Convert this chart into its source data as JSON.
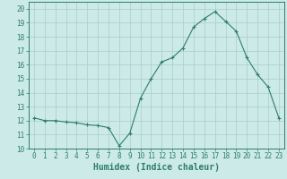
{
  "x": [
    0,
    1,
    2,
    3,
    4,
    5,
    6,
    7,
    8,
    9,
    10,
    11,
    12,
    13,
    14,
    15,
    16,
    17,
    18,
    19,
    20,
    21,
    22,
    23
  ],
  "y": [
    12.2,
    12.0,
    12.0,
    11.9,
    11.85,
    11.7,
    11.65,
    11.5,
    10.2,
    11.1,
    13.6,
    15.0,
    16.2,
    16.5,
    17.2,
    18.7,
    19.3,
    19.8,
    19.1,
    18.4,
    16.5,
    15.3,
    14.4,
    12.2
  ],
  "line_color": "#2e7d6b",
  "marker": "+",
  "marker_size": 3,
  "marker_lw": 0.8,
  "bg_color": "#cceae7",
  "grid_color": "#aaccca",
  "xlabel": "Humidex (Indice chaleur)",
  "xlim": [
    -0.5,
    23.5
  ],
  "ylim": [
    10,
    20.5
  ],
  "yticks": [
    10,
    11,
    12,
    13,
    14,
    15,
    16,
    17,
    18,
    19,
    20
  ],
  "xticks": [
    0,
    1,
    2,
    3,
    4,
    5,
    6,
    7,
    8,
    9,
    10,
    11,
    12,
    13,
    14,
    15,
    16,
    17,
    18,
    19,
    20,
    21,
    22,
    23
  ],
  "tick_label_fontsize": 5.5,
  "xlabel_fontsize": 7.0,
  "axis_color": "#2e7d6b",
  "line_width": 0.8
}
